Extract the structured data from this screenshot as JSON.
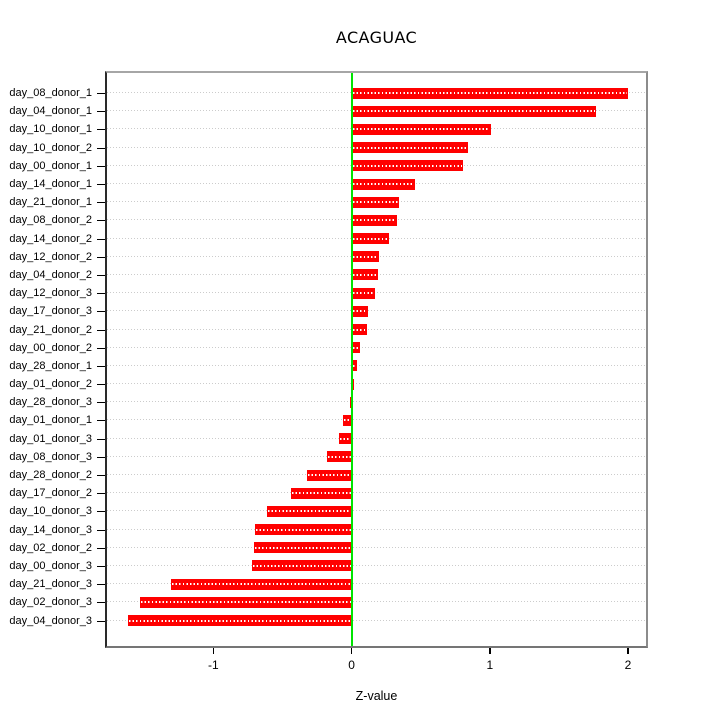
{
  "title": "ACAGUAC",
  "chart_data": {
    "type": "bar",
    "orientation": "horizontal",
    "title": "ACAGUAC",
    "xlabel": "Z-value",
    "ylabel": "",
    "categories": [
      "day_08_donor_1",
      "day_04_donor_1",
      "day_10_donor_1",
      "day_10_donor_2",
      "day_00_donor_1",
      "day_14_donor_1",
      "day_21_donor_1",
      "day_08_donor_2",
      "day_14_donor_2",
      "day_12_donor_2",
      "day_04_donor_2",
      "day_12_donor_3",
      "day_17_donor_3",
      "day_21_donor_2",
      "day_00_donor_2",
      "day_28_donor_1",
      "day_01_donor_2",
      "day_28_donor_3",
      "day_01_donor_1",
      "day_01_donor_3",
      "day_08_donor_3",
      "day_28_donor_2",
      "day_17_donor_2",
      "day_10_donor_3",
      "day_14_donor_3",
      "day_02_donor_2",
      "day_00_donor_3",
      "day_21_donor_3",
      "day_02_donor_3",
      "day_04_donor_3"
    ],
    "values": [
      2.0,
      1.77,
      1.01,
      0.84,
      0.81,
      0.46,
      0.34,
      0.33,
      0.27,
      0.2,
      0.19,
      0.17,
      0.12,
      0.11,
      0.06,
      0.04,
      0.015,
      -0.015,
      -0.06,
      -0.09,
      -0.18,
      -0.32,
      -0.44,
      -0.61,
      -0.7,
      -0.71,
      -0.72,
      -1.31,
      -1.53,
      -1.62
    ],
    "x_ticks": [
      "-1",
      "0",
      "1",
      "2"
    ],
    "x_tick_values": [
      -1,
      0,
      1,
      2
    ],
    "xlim": [
      -1.77,
      2.13
    ],
    "grid": true,
    "legend": "none",
    "bar_color": "#ff0000",
    "bar_stripe_color": "#ffffff",
    "zero_line_color": "#00e400",
    "grid_color": "#cccccc",
    "frame_color": "#8c8c8c",
    "tick_color": "#000000",
    "background": "#ffffff"
  }
}
